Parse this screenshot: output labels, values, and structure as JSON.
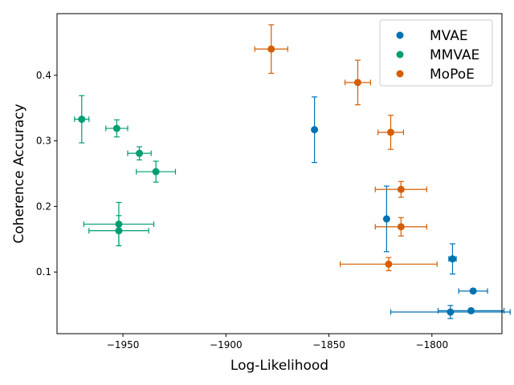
{
  "chart_data": {
    "type": "scatter",
    "title": "",
    "xlabel": "Log-Likelihood",
    "ylabel": "Coherence Accuracy",
    "xlim": [
      -1982,
      -1766
    ],
    "ylim": [
      0.006,
      0.494
    ],
    "xticks": [
      -1950,
      -1900,
      -1850,
      -1800
    ],
    "xtick_labels": [
      "−1950",
      "−1900",
      "−1850",
      "−1800"
    ],
    "yticks": [
      0.1,
      0.2,
      0.3,
      0.4
    ],
    "ytick_labels": [
      "0.1",
      "0.2",
      "0.3",
      "0.4"
    ],
    "legend_position": "top-right",
    "series": [
      {
        "name": "MVAE",
        "color": "#0072b2",
        "points": [
          {
            "x": -1857,
            "y": 0.317,
            "xerr": 0.0,
            "yerr": 0.05
          },
          {
            "x": -1822,
            "y": 0.181,
            "xerr": 0.0,
            "yerr": 0.05
          },
          {
            "x": -1790,
            "y": 0.12,
            "xerr": 1.8,
            "yerr": 0.023
          },
          {
            "x": -1780,
            "y": 0.071,
            "xerr": 7.0,
            "yerr": 0.003
          },
          {
            "x": -1791,
            "y": 0.039,
            "xerr": 29.0,
            "yerr": 0.01
          },
          {
            "x": -1781,
            "y": 0.041,
            "xerr": 16.0,
            "yerr": 0.003
          }
        ]
      },
      {
        "name": "MMVAE",
        "color": "#009e73",
        "points": [
          {
            "x": -1970,
            "y": 0.333,
            "xerr": 3.5,
            "yerr": 0.036
          },
          {
            "x": -1953,
            "y": 0.319,
            "xerr": 5.3,
            "yerr": 0.013
          },
          {
            "x": -1942,
            "y": 0.281,
            "xerr": 5.7,
            "yerr": 0.01
          },
          {
            "x": -1934,
            "y": 0.253,
            "xerr": 9.5,
            "yerr": 0.016
          },
          {
            "x": -1952,
            "y": 0.173,
            "xerr": 17.0,
            "yerr": 0.033
          },
          {
            "x": -1952,
            "y": 0.163,
            "xerr": 14.5,
            "yerr": 0.023
          }
        ]
      },
      {
        "name": "MoPoE",
        "color": "#d55e00",
        "points": [
          {
            "x": -1878,
            "y": 0.44,
            "xerr": 8.0,
            "yerr": 0.037
          },
          {
            "x": -1836,
            "y": 0.389,
            "xerr": 6.2,
            "yerr": 0.034
          },
          {
            "x": -1820,
            "y": 0.313,
            "xerr": 6.2,
            "yerr": 0.026
          },
          {
            "x": -1815,
            "y": 0.226,
            "xerr": 12.5,
            "yerr": 0.012
          },
          {
            "x": -1815,
            "y": 0.169,
            "xerr": 12.5,
            "yerr": 0.014
          },
          {
            "x": -1821,
            "y": 0.112,
            "xerr": 23.5,
            "yerr": 0.01
          }
        ]
      }
    ]
  }
}
